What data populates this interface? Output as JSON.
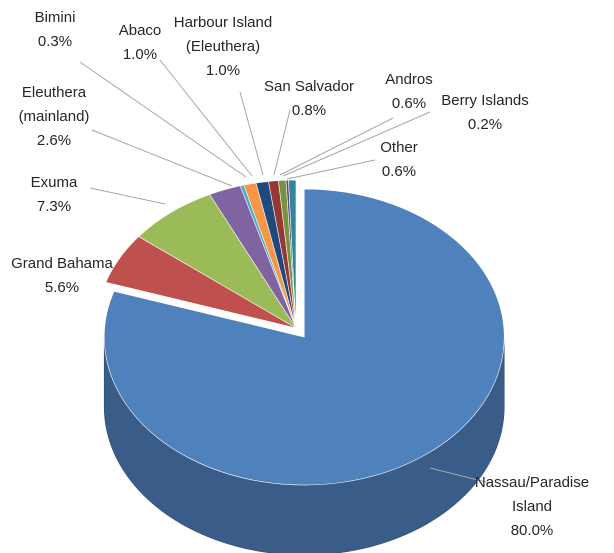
{
  "chart_data": {
    "type": "pie",
    "title": "",
    "categories": [
      "Nassau/Paradise Island",
      "Grand Bahama",
      "Exuma",
      "Eleuthera (mainland)",
      "Bimini",
      "Abaco",
      "Harbour Island (Eleuthera)",
      "San Salvador",
      "Andros",
      "Berry Islands",
      "Other"
    ],
    "values": [
      80.0,
      5.6,
      7.3,
      2.6,
      0.3,
      1.0,
      1.0,
      0.8,
      0.6,
      0.2,
      0.6
    ],
    "value_labels": [
      "80.0%",
      "5.6%",
      "7.3%",
      "2.6%",
      "0.3%",
      "1.0%",
      "1.0%",
      "0.8%",
      "0.6%",
      "0.2%",
      "0.6%"
    ],
    "label_lines": [
      [
        "Nassau/Paradise",
        "Island"
      ],
      [
        "Grand Bahama"
      ],
      [
        "Exuma"
      ],
      [
        "Eleuthera",
        "(mainland)"
      ],
      [
        "Bimini"
      ],
      [
        "Abaco"
      ],
      [
        "Harbour Island",
        "(Eleuthera)"
      ],
      [
        "San Salvador"
      ],
      [
        "Andros"
      ],
      [
        "Berry Islands"
      ],
      [
        "Other"
      ]
    ],
    "colors": [
      "#4f81bd",
      "#c0504d",
      "#9bbb59",
      "#8064a2",
      "#4bacc6",
      "#f79646",
      "#1f497d",
      "#953735",
      "#77933c",
      "#604a7b",
      "#31859c"
    ],
    "exploded_slice": "Nassau/Paradise Island",
    "three_d": true,
    "legend": "none",
    "grid": false
  }
}
